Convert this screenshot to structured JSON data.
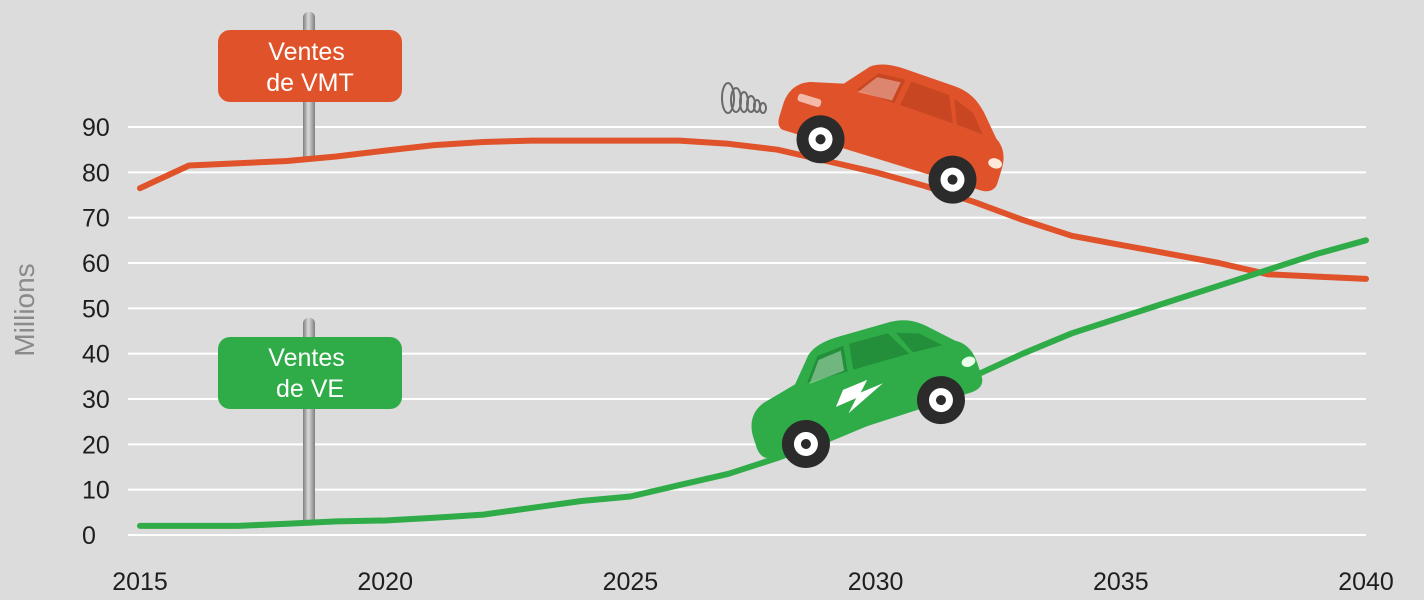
{
  "chart_data": {
    "type": "line",
    "ylabel": "Millions",
    "xlim": [
      2015,
      2040
    ],
    "ylim": [
      0,
      90
    ],
    "x_ticks": [
      2015,
      2020,
      2025,
      2030,
      2035,
      2040
    ],
    "y_ticks": [
      0,
      10,
      20,
      30,
      40,
      50,
      60,
      70,
      80,
      90
    ],
    "grid": true,
    "series": [
      {
        "name": "Ventes de VMT",
        "label_lines": [
          "Ventes",
          "de VMT"
        ],
        "color": "#e0532a",
        "x": [
          2015,
          2016,
          2017,
          2018,
          2019,
          2020,
          2021,
          2022,
          2023,
          2024,
          2025,
          2026,
          2027,
          2028,
          2029,
          2030,
          2031,
          2032,
          2033,
          2034,
          2035,
          2036,
          2037,
          2038,
          2039,
          2040
        ],
        "values": [
          76.5,
          81.5,
          82,
          82.5,
          83.5,
          84.8,
          86,
          86.7,
          87,
          87,
          87,
          87,
          86.3,
          85,
          82.5,
          80,
          77,
          73.5,
          69.5,
          66,
          64,
          62,
          60,
          57.5,
          57,
          56.5
        ]
      },
      {
        "name": "Ventes de VE",
        "label_lines": [
          "Ventes",
          "de VE"
        ],
        "color": "#2fac48",
        "x": [
          2015,
          2016,
          2017,
          2018,
          2019,
          2020,
          2021,
          2022,
          2023,
          2024,
          2025,
          2026,
          2027,
          2028,
          2029,
          2030,
          2031,
          2032,
          2033,
          2034,
          2035,
          2036,
          2037,
          2038,
          2039,
          2040
        ],
        "values": [
          2,
          2,
          2,
          2.5,
          3,
          3.2,
          3.8,
          4.5,
          6,
          7.5,
          8.5,
          11,
          13.5,
          17,
          21,
          25.5,
          30,
          35,
          40,
          44.5,
          48,
          51.5,
          55,
          58.5,
          62,
          65
        ]
      }
    ]
  },
  "icons": {
    "ice_car": "ice-car-icon",
    "ev_car": "ev-car-icon"
  },
  "colors": {
    "background": "#dcdcdc",
    "grid": "#ffffff",
    "post": "#a0a0a0"
  }
}
